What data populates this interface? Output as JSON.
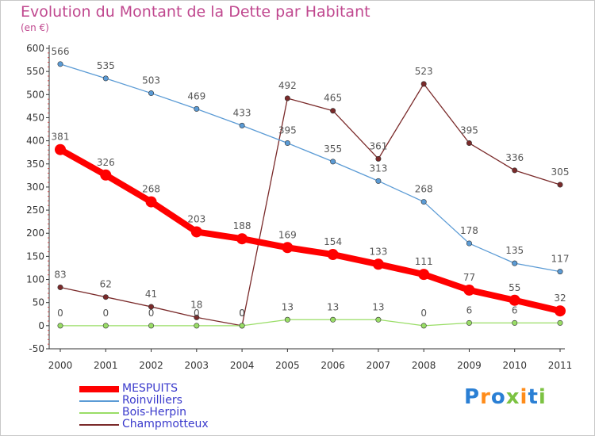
{
  "title": "Evolution du Montant de la Dette par Habitant",
  "subtitle": "(en €)",
  "logo": "Proxiti",
  "chart_data": {
    "type": "line",
    "title": "Evolution du Montant de la Dette par Habitant",
    "subtitle": "(en €)",
    "xlabel": "",
    "ylabel": "",
    "x": [
      "2000",
      "2001",
      "2002",
      "2003",
      "2004",
      "2005",
      "2006",
      "2007",
      "2008",
      "2009",
      "2010",
      "2011"
    ],
    "ylim": [
      -50,
      600
    ],
    "yticks": [
      -50,
      0,
      50,
      100,
      150,
      200,
      250,
      300,
      350,
      400,
      450,
      500,
      550,
      600
    ],
    "grid": false,
    "legend_position": "bottom-left",
    "series": [
      {
        "name": "MESPUITS",
        "color": "#ff0000",
        "values": [
          381,
          326,
          268,
          203,
          188,
          169,
          154,
          133,
          111,
          77,
          55,
          32
        ]
      },
      {
        "name": "Roinvilliers",
        "color": "#5b9bd5",
        "values": [
          566,
          535,
          503,
          469,
          433,
          395,
          355,
          313,
          268,
          178,
          135,
          117
        ]
      },
      {
        "name": "Bois-Herpin",
        "color": "#99dd66",
        "values": [
          0,
          0,
          0,
          0,
          0,
          13,
          13,
          13,
          0,
          6,
          6,
          6
        ]
      },
      {
        "name": "Champmotteux",
        "color": "#7a2a2a",
        "values": [
          83,
          62,
          41,
          18,
          0,
          492,
          465,
          361,
          523,
          395,
          336,
          305
        ]
      }
    ]
  }
}
